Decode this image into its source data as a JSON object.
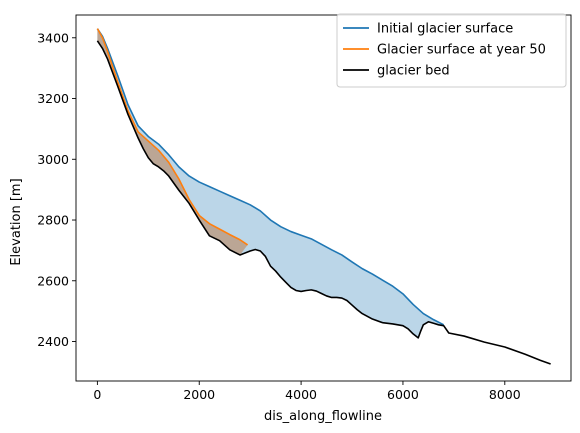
{
  "chart_data": {
    "type": "line",
    "xlabel": "dis_along_flowline",
    "ylabel": "Elevation [m]",
    "xlim": [
      -420,
      9300
    ],
    "ylim": [
      2270,
      3475
    ],
    "xticks": [
      0,
      2000,
      4000,
      6000,
      8000
    ],
    "yticks": [
      2400,
      2600,
      2800,
      3000,
      3200,
      3400
    ],
    "legend_position": "top-right",
    "grid": false,
    "series": [
      {
        "name": "Initial glacier surface",
        "color": "#1f77b4",
        "x": [
          0,
          100,
          200,
          400,
          600,
          800,
          1000,
          1200,
          1400,
          1600,
          1800,
          2000,
          2200,
          2400,
          2600,
          2800,
          3000,
          3200,
          3400,
          3600,
          3800,
          4000,
          4200,
          4400,
          4600,
          4800,
          5000,
          5200,
          5400,
          5600,
          5800,
          6000,
          6200,
          6400,
          6600,
          6800
        ],
        "y": [
          3430,
          3405,
          3365,
          3275,
          3180,
          3110,
          3075,
          3050,
          3015,
          2975,
          2945,
          2925,
          2910,
          2895,
          2880,
          2865,
          2850,
          2830,
          2800,
          2778,
          2762,
          2750,
          2738,
          2720,
          2702,
          2685,
          2662,
          2640,
          2622,
          2602,
          2582,
          2557,
          2522,
          2492,
          2472,
          2455
        ]
      },
      {
        "name": "Glacier surface at year 50",
        "color": "#ff7f0e",
        "x": [
          0,
          100,
          200,
          400,
          600,
          800,
          1000,
          1200,
          1400,
          1600,
          1800,
          2000,
          2200,
          2400,
          2600,
          2800,
          2950
        ],
        "y": [
          3430,
          3400,
          3355,
          3255,
          3160,
          3090,
          3060,
          3030,
          2990,
          2935,
          2868,
          2815,
          2788,
          2770,
          2752,
          2735,
          2718
        ]
      },
      {
        "name": "glacier bed",
        "color": "#000000",
        "x": [
          0,
          100,
          200,
          400,
          600,
          800,
          900,
          1000,
          1100,
          1200,
          1300,
          1400,
          1600,
          1800,
          2000,
          2200,
          2400,
          2600,
          2800,
          3000,
          3100,
          3200,
          3300,
          3400,
          3500,
          3600,
          3700,
          3800,
          3900,
          4000,
          4100,
          4200,
          4300,
          4400,
          4500,
          4600,
          4700,
          4800,
          4900,
          5000,
          5100,
          5200,
          5400,
          5600,
          5800,
          6000,
          6100,
          6200,
          6300,
          6350,
          6400,
          6500,
          6600,
          6700,
          6800,
          6900,
          7200,
          7600,
          8000,
          8400,
          8700,
          8900
        ],
        "y": [
          3390,
          3365,
          3330,
          3240,
          3148,
          3070,
          3035,
          3005,
          2985,
          2975,
          2962,
          2945,
          2898,
          2855,
          2800,
          2748,
          2732,
          2702,
          2685,
          2698,
          2703,
          2698,
          2680,
          2648,
          2632,
          2612,
          2595,
          2578,
          2568,
          2565,
          2568,
          2570,
          2566,
          2558,
          2550,
          2545,
          2545,
          2543,
          2535,
          2520,
          2505,
          2492,
          2474,
          2462,
          2458,
          2452,
          2442,
          2425,
          2412,
          2435,
          2455,
          2465,
          2460,
          2455,
          2452,
          2428,
          2418,
          2398,
          2382,
          2358,
          2338,
          2326
        ]
      }
    ]
  }
}
